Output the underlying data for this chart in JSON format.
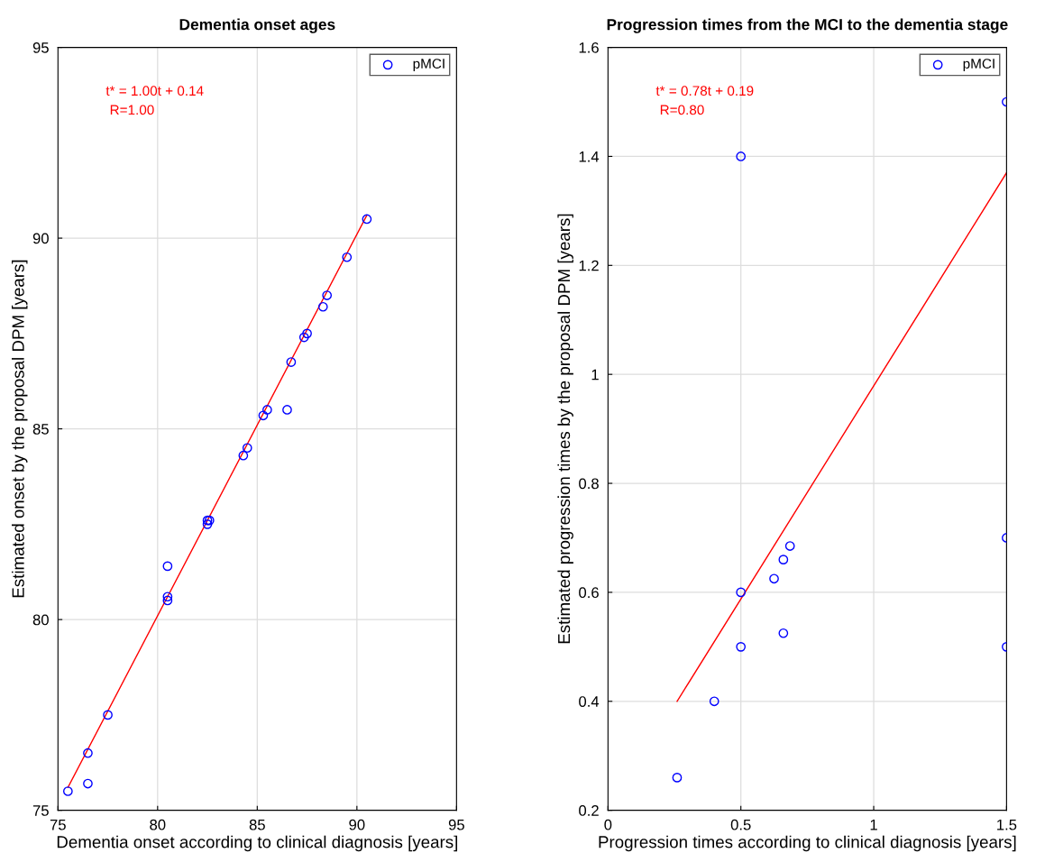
{
  "chart_data": [
    {
      "type": "scatter",
      "title": "Dementia onset ages",
      "xlabel": "Dementia onset according to clinical diagnosis [years]",
      "ylabel": "Estimated onset by the proposal DPM [years]",
      "xlim": [
        75,
        95
      ],
      "xticks": [
        75,
        80,
        85,
        90,
        95
      ],
      "ylim": [
        75,
        95
      ],
      "yticks": [
        75,
        80,
        85,
        90,
        95
      ],
      "grid": true,
      "legend": "top right",
      "annotations": [
        "t* = 1.00t + 0.14",
        " R=1.00"
      ],
      "series": [
        {
          "name": "pMCI",
          "marker": "circle",
          "color": "#0000ff",
          "x": [
            75.5,
            76.5,
            76.5,
            77.5,
            80.5,
            80.5,
            80.5,
            82.5,
            82.6,
            82.5,
            84.3,
            84.5,
            85.3,
            85.5,
            86.5,
            86.7,
            87.35,
            87.5,
            88.3,
            88.5,
            89.5,
            90.5
          ],
          "values": [
            75.5,
            75.7,
            76.5,
            77.5,
            81.4,
            80.6,
            80.5,
            82.6,
            82.6,
            82.5,
            84.3,
            84.5,
            85.35,
            85.5,
            85.5,
            86.75,
            87.4,
            87.5,
            88.2,
            88.5,
            89.5,
            90.5
          ]
        },
        {
          "type": "line",
          "color": "#ff0000",
          "x": [
            75.5,
            90.5
          ],
          "values": [
            75.6,
            90.6
          ]
        }
      ]
    },
    {
      "type": "scatter",
      "title": "Progression times from the MCI to the dementia stage",
      "xlabel": "Progression times according to clinical diagnosis [years]",
      "ylabel": "Estimated progression times by the proposal DPM [years]",
      "xlim": [
        0,
        1.5
      ],
      "xticks": [
        0,
        0.5,
        1,
        1.5
      ],
      "ylim": [
        0.2,
        1.6
      ],
      "yticks": [
        0.2,
        0.4,
        0.6,
        0.8,
        1,
        1.2,
        1.4,
        1.6
      ],
      "grid": true,
      "legend": "top right",
      "annotations": [
        "t* = 0.78t + 0.19",
        " R=0.80"
      ],
      "series": [
        {
          "name": "pMCI",
          "marker": "circle",
          "color": "#0000ff",
          "x": [
            0.26,
            0.4,
            0.5,
            0.5,
            0.5,
            0.625,
            0.66,
            0.66,
            0.685,
            1.5,
            1.5,
            1.5
          ],
          "values": [
            0.26,
            0.4,
            0.5,
            0.6,
            1.4,
            0.625,
            0.525,
            0.66,
            0.685,
            1.5,
            0.7,
            0.5
          ]
        },
        {
          "type": "line",
          "color": "#ff0000",
          "x": [
            0.26,
            1.5
          ],
          "values": [
            0.4,
            1.37
          ]
        }
      ]
    }
  ]
}
